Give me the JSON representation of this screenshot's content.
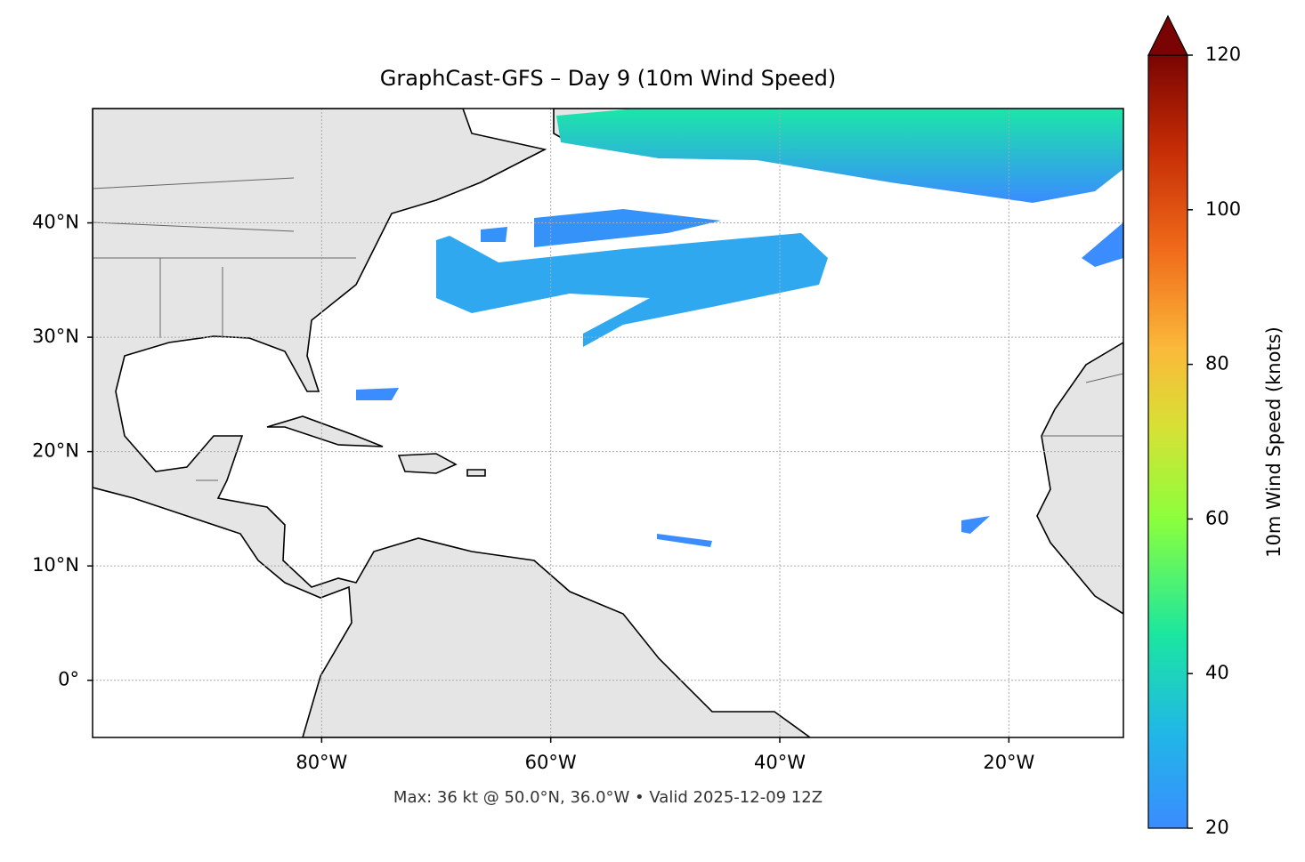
{
  "chart_data": {
    "type": "map",
    "title": "GraphCast-GFS – Day 9 (10m Wind Speed)",
    "note": "Max: 36 kt @ 50.0°N, 36.0°W • Valid 2025-12-09 12Z",
    "xlim": [
      -100,
      -10
    ],
    "ylim": [
      -5,
      50
    ],
    "xticks": [
      {
        "value": -80,
        "label": "80°W"
      },
      {
        "value": -60,
        "label": "60°W"
      },
      {
        "value": -40,
        "label": "40°W"
      },
      {
        "value": -20,
        "label": "20°W"
      }
    ],
    "yticks": [
      {
        "value": 0,
        "label": "0°"
      },
      {
        "value": 10,
        "label": "10°N"
      },
      {
        "value": 20,
        "label": "20°N"
      },
      {
        "value": 30,
        "label": "30°N"
      },
      {
        "value": 40,
        "label": "40°N"
      }
    ],
    "grid": true,
    "colorbar": {
      "label": "10m Wind Speed (knots)",
      "lim": [
        20,
        120
      ],
      "ticks": [
        20,
        40,
        60,
        80,
        100,
        120
      ]
    }
  }
}
